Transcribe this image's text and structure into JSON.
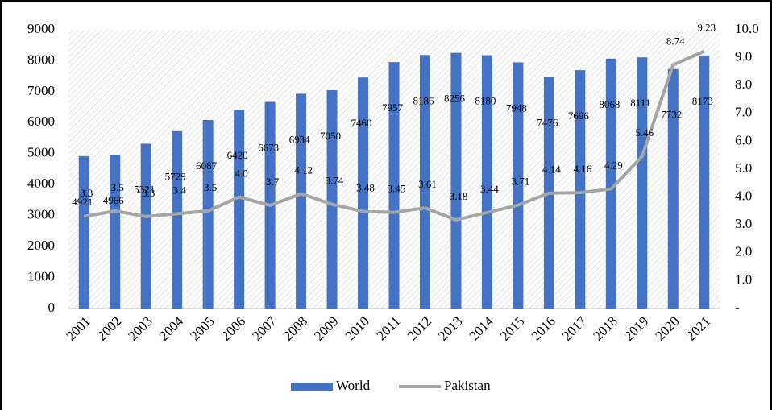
{
  "chart_data": {
    "type": "bar-line",
    "categories": [
      "2001",
      "2002",
      "2003",
      "2004",
      "2005",
      "2006",
      "2007",
      "2008",
      "2009",
      "2010",
      "2011",
      "2012",
      "2013",
      "2014",
      "2015",
      "2016",
      "2017",
      "2018",
      "2019",
      "2020",
      "2021"
    ],
    "series": [
      {
        "name": "World",
        "type": "bar",
        "color": "#4472c4",
        "values": [
          4921,
          4966,
          5321,
          5729,
          6087,
          6420,
          6673,
          6934,
          7050,
          7460,
          7957,
          8186,
          8256,
          8180,
          7948,
          7476,
          7696,
          8068,
          8111,
          7732,
          8173
        ]
      },
      {
        "name": "Pakistan",
        "type": "line",
        "axis": "y2",
        "color": "#a5a5a5",
        "values": [
          3.3,
          3.5,
          3.3,
          3.4,
          3.5,
          4.0,
          3.7,
          4.12,
          3.74,
          3.48,
          3.45,
          3.61,
          3.18,
          3.44,
          3.71,
          4.14,
          4.16,
          4.29,
          5.46,
          8.74,
          9.23
        ],
        "value_labels": [
          "3.3",
          "3.5",
          "3.3",
          "3.4",
          "3.5",
          "4.0",
          "3.7",
          "4.12",
          "3.74",
          "3.48",
          "3.45",
          "3.61",
          "3.18",
          "3.44",
          "3.71",
          "4.14",
          "4.16",
          "4.29",
          "5.46",
          "8.74",
          "9.23"
        ]
      }
    ],
    "ylim": [
      0,
      9000
    ],
    "yticks": [
      0,
      1000,
      2000,
      3000,
      4000,
      5000,
      6000,
      7000,
      8000,
      9000
    ],
    "y2lim": [
      0,
      10
    ],
    "y2ticks": [
      {
        "value": 0,
        "label": "-"
      },
      {
        "value": 1,
        "label": "1.0"
      },
      {
        "value": 2,
        "label": "2.0"
      },
      {
        "value": 3,
        "label": "3.0"
      },
      {
        "value": 4,
        "label": "4.0"
      },
      {
        "value": 5,
        "label": "5.0"
      },
      {
        "value": 6,
        "label": "6.0"
      },
      {
        "value": 7,
        "label": "7.0"
      },
      {
        "value": 8,
        "label": "8.0"
      },
      {
        "value": 9,
        "label": "9.0"
      },
      {
        "value": 10,
        "label": "10.0"
      }
    ],
    "grid": false,
    "legend": "bottom"
  }
}
